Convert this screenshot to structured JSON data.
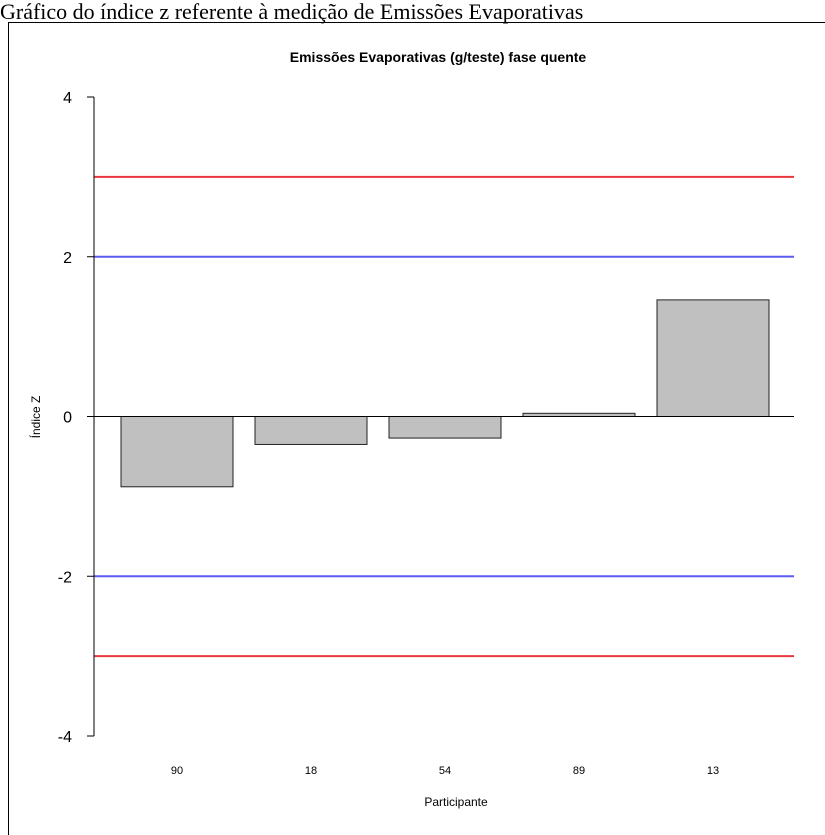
{
  "caption": "Gráfico do índice z referente à medição de Emissões Evaporativas",
  "chart_data": {
    "type": "bar",
    "title": "Emissões Evaporativas (g/teste) fase quente",
    "xlabel": "Participante",
    "ylabel": "Índice Z",
    "categories": [
      "90",
      "18",
      "54",
      "89",
      "13"
    ],
    "values": [
      -0.88,
      -0.35,
      -0.27,
      0.04,
      1.46
    ],
    "ylim": [
      -4,
      4
    ],
    "yticks": [
      4,
      2,
      0,
      -2,
      -4
    ],
    "ytick_labels": [
      "4",
      "2",
      "0",
      "-2",
      "-4"
    ],
    "reference_lines": [
      {
        "value": 3,
        "color": "#e8383d"
      },
      {
        "value": 2,
        "color": "#5b5bf2"
      },
      {
        "value": -2,
        "color": "#5b5bf2"
      },
      {
        "value": -3,
        "color": "#e8383d"
      }
    ],
    "bar_color": "#c0c0c0",
    "bar_edge_color": "#222222",
    "grid": false
  }
}
